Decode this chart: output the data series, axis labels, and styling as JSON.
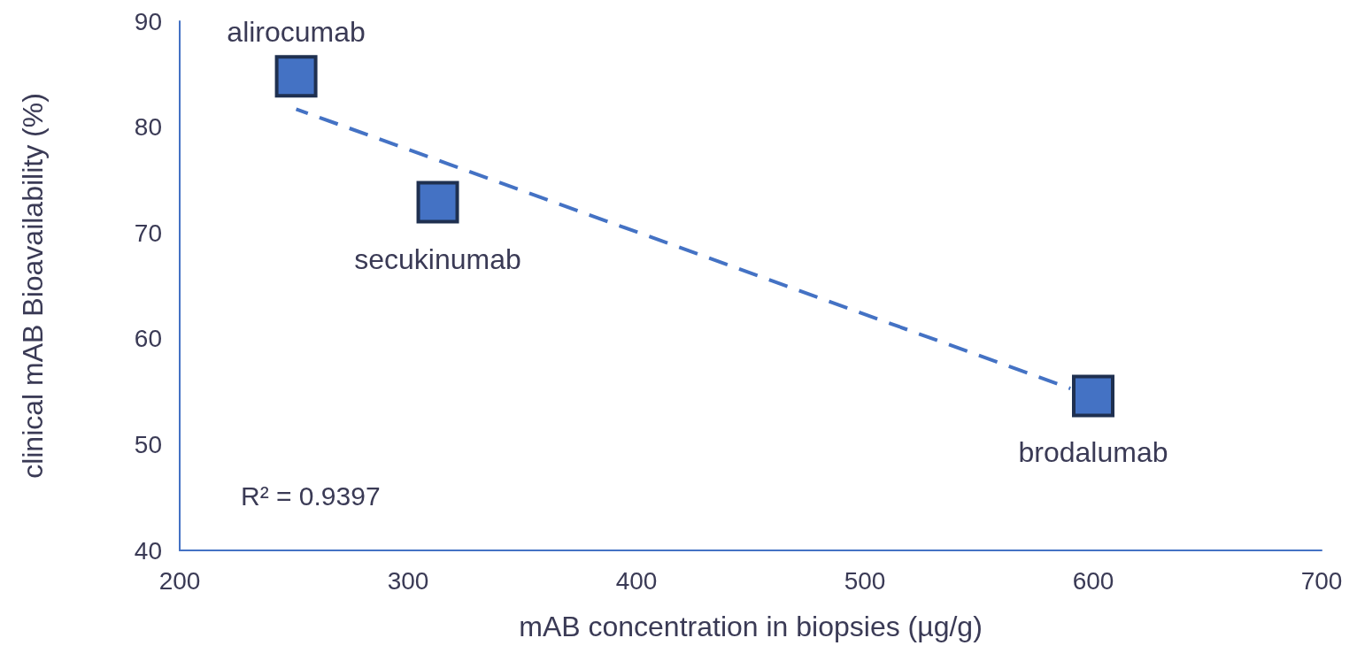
{
  "chart_data": {
    "type": "scatter",
    "xlabel": "mAB concentration in biopsies (µg/g)",
    "ylabel": "clinical mAB Bioavailability (%)",
    "series": [
      {
        "color": "#4472c4",
        "x": [
          251,
          313,
          600
        ],
        "values": [
          84.8,
          72.9,
          54.6
        ],
        "marker": "square"
      },
      {
        "type": "line",
        "color": "#4472c4",
        "x": [
          251,
          590
        ],
        "values": [
          81.7,
          55.3
        ],
        "line_style": "dashed",
        "marker": "none"
      }
    ],
    "annotations": [
      {
        "text": "alirocumab",
        "x": 251,
        "y": 84.8
      },
      {
        "text": "secukinumab",
        "x": 313,
        "y": 72.9
      },
      {
        "text": "brodalumab",
        "x": 600,
        "y": 54.6
      },
      "R² = 0.9397"
    ],
    "xlim": [
      200,
      700
    ],
    "xticks": [
      200,
      300,
      400,
      500,
      600,
      700
    ],
    "ylim": [
      40,
      90
    ],
    "yticks": [
      40,
      50,
      60,
      70,
      80,
      90
    ],
    "grid": false
  }
}
